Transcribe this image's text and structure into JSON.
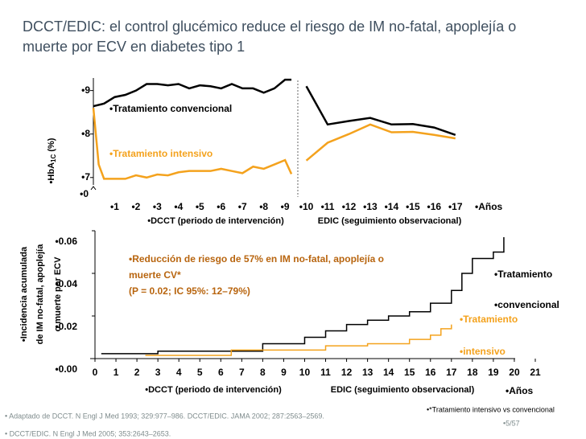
{
  "title": [
    "DCCT/EDIC: el control glucémico reduce el riesgo de IM no-fatal, apoplejía o",
    "muerte por ECV en diabetes tipo 1"
  ],
  "chart_data": [
    {
      "type": "line",
      "ylabel": {
        "main": "•HbA",
        "sub": "1C",
        "unit": " (%)"
      },
      "axis_break_label": "•0",
      "xlabel_periods": [
        "•DCCT (periodo de intervención)",
        "EDIC (seguimiento observacional)"
      ],
      "xunit": "•Años",
      "xlim": [
        0,
        17.5
      ],
      "ylim": [
        6.7,
        9.4
      ],
      "xticks": [
        {
          "value": 1,
          "label": "•1"
        },
        {
          "value": 2,
          "label": "•2"
        },
        {
          "value": 3,
          "label": "•3"
        },
        {
          "value": 4,
          "label": "•4"
        },
        {
          "value": 5,
          "label": "•5"
        },
        {
          "value": 6,
          "label": "•6"
        },
        {
          "value": 7,
          "label": "•7"
        },
        {
          "value": 8,
          "label": "•8"
        },
        {
          "value": 9,
          "label": "•9"
        },
        {
          "value": 10,
          "label": "•10"
        },
        {
          "value": 11,
          "label": "•11"
        },
        {
          "value": 12,
          "label": "•12"
        },
        {
          "value": 13,
          "label": "•13"
        },
        {
          "value": 14,
          "label": "•14"
        },
        {
          "value": 15,
          "label": "•15"
        },
        {
          "value": 16,
          "label": "•16"
        },
        {
          "value": 17,
          "label": "•17"
        }
      ],
      "yticks": [
        {
          "value": 7,
          "label": "•7"
        },
        {
          "value": 8,
          "label": "•8"
        },
        {
          "value": 9,
          "label": "•9"
        }
      ],
      "separator_x": 9.6,
      "series": [
        {
          "name": "•Tratamiento convencional",
          "color": "#000000",
          "x": [
            0,
            0.5,
            1,
            1.5,
            2,
            2.5,
            3,
            3.5,
            4,
            4.5,
            5,
            5.5,
            6,
            6.5,
            7,
            7.5,
            8,
            8.5,
            9,
            9.3,
            9.6,
            10,
            11,
            12,
            13,
            14,
            15,
            16,
            17
          ],
          "values": [
            8.64,
            8.7,
            8.85,
            8.9,
            9.0,
            9.15,
            9.15,
            9.12,
            9.15,
            9.05,
            9.12,
            9.1,
            9.05,
            9.15,
            9.05,
            9.05,
            8.95,
            9.05,
            9.25,
            9.25,
            null,
            9.1,
            8.22,
            8.3,
            8.37,
            8.22,
            8.23,
            8.15,
            7.98
          ]
        },
        {
          "name": "•Tratamiento intensivo",
          "color": "#f4a21d",
          "x": [
            0,
            0.25,
            0.5,
            1,
            1.5,
            2,
            2.5,
            3,
            3.5,
            4,
            4.5,
            5,
            5.5,
            6,
            6.5,
            7,
            7.5,
            8,
            8.5,
            9,
            9.3,
            9.6,
            10,
            11,
            12,
            13,
            14,
            15,
            16,
            17
          ],
          "values": [
            8.6,
            7.3,
            6.97,
            6.97,
            6.97,
            7.05,
            7.0,
            7.07,
            7.05,
            7.12,
            7.15,
            7.15,
            7.15,
            7.2,
            7.15,
            7.1,
            7.25,
            7.2,
            7.3,
            7.4,
            7.08,
            null,
            7.39,
            7.8,
            8.0,
            8.22,
            8.04,
            8.05,
            7.98,
            7.9
          ]
        }
      ]
    },
    {
      "type": "step",
      "ylabel_lines": [
        "•Incidencia acumulada",
        "de IM no-fatal, apoplejía",
        "o muerte por ECV"
      ],
      "annotation": [
        "•Reducción de riesgo de 57% en IM no-fatal, apoplejía o",
        "muerte CV*",
        "(P = 0.02; IC 95%: 12–79%)"
      ],
      "xlabel_periods": [
        "•DCCT (periodo de intervención)",
        "EDIC (seguimiento observacional)"
      ],
      "xunit": "•Años",
      "xlim": [
        0,
        21
      ],
      "ylim": [
        0,
        0.06
      ],
      "xticks": [
        0,
        1,
        2,
        3,
        4,
        5,
        6,
        7,
        8,
        9,
        10,
        11,
        12,
        13,
        14,
        15,
        16,
        17,
        18,
        19,
        20,
        21
      ],
      "yticks": [
        {
          "value": 0,
          "label": "•0.00"
        },
        {
          "value": 0.02,
          "label": "•0.02"
        },
        {
          "value": 0.04,
          "label": "•0.04"
        },
        {
          "value": 0.06,
          "label": "•0.06"
        }
      ],
      "series": [
        {
          "label_lines": [
            "•Tratamiento",
            "•convencional"
          ],
          "color": "#000000",
          "x": [
            0.3,
            3,
            8,
            10,
            11,
            12,
            13,
            14,
            15,
            16,
            17,
            17.5,
            18,
            19,
            19.5
          ],
          "values": [
            0.0023,
            0.0035,
            0.007,
            0.01,
            0.013,
            0.016,
            0.018,
            0.02,
            0.022,
            0.026,
            0.032,
            0.04,
            0.047,
            0.05,
            0.057
          ]
        },
        {
          "label_lines": [
            "•Tratamiento",
            "•intensivo"
          ],
          "color": "#f4a21d",
          "x": [
            2.4,
            6.5,
            11,
            13,
            15,
            16,
            16.5,
            17
          ],
          "values": [
            0.0015,
            0.004,
            0.006,
            0.007,
            0.009,
            0.011,
            0.014,
            0.016
          ]
        }
      ]
    }
  ],
  "footnotes": [
    "• Adaptado de DCCT. N Engl J Med 1993; 329:977–986. DCCT/EDIC. JAMA 2002; 287:2563–2569.",
    "• DCCT/EDIC. N Engl J Med 2005; 353:2643–2653."
  ],
  "side_note": "•*Tratamiento intensivo vs convencional",
  "page_number": "•5/57"
}
